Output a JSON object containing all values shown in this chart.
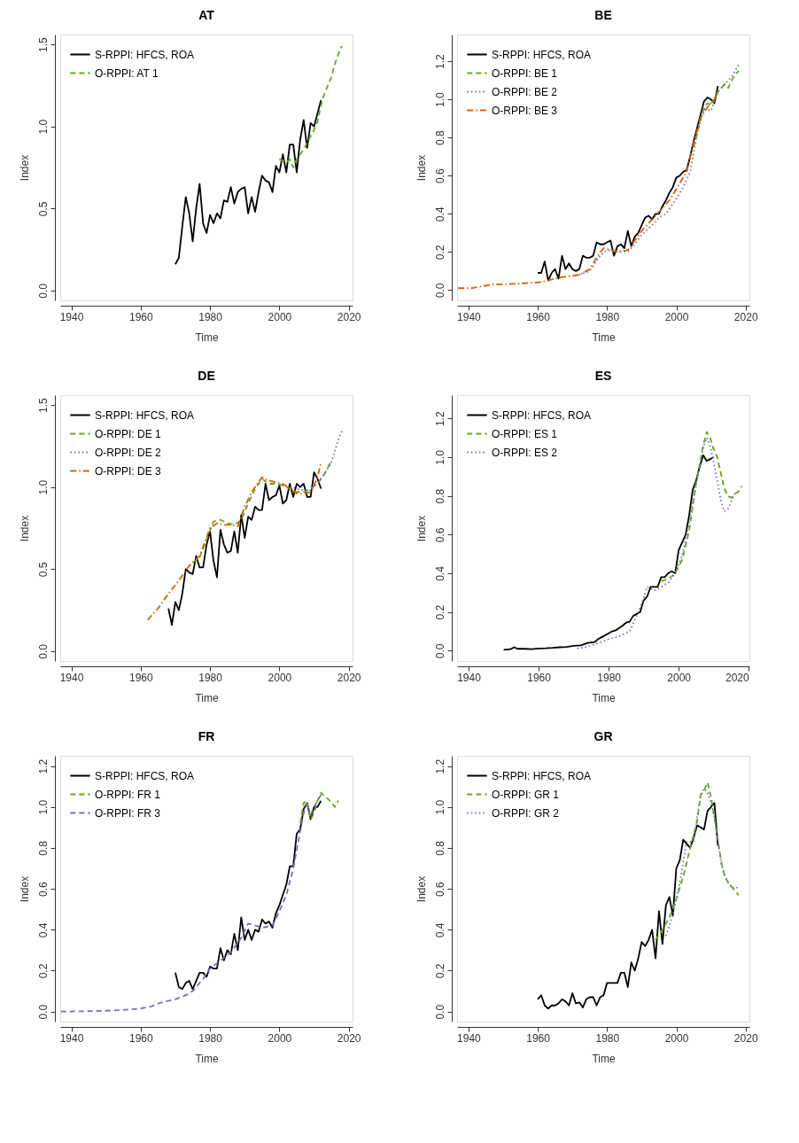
{
  "chart_data": [
    {
      "type": "line",
      "title": "AT",
      "xlabel": "Time",
      "ylabel": "Index",
      "legend": "top left",
      "xlim": [
        1936.8,
        2021.1
      ],
      "xticks": [
        1940,
        1960,
        1980,
        2000,
        2020
      ],
      "ylim": [
        -0.06,
        1.56
      ],
      "yticks": [
        {
          "value": 0,
          "label": "0.0"
        },
        {
          "value": 0.5,
          "label": "0.5"
        },
        {
          "value": 1,
          "label": "1.0"
        },
        {
          "value": 1.5,
          "label": "1.5"
        }
      ],
      "series": [
        {
          "name": "S-RPPI: HFCS, ROA",
          "color": "#000000",
          "line_style": "solid",
          "x": [
            1970,
            1971,
            1972,
            1973,
            1974,
            1975,
            1976,
            1977,
            1978,
            1979,
            1980,
            1981,
            1982,
            1983,
            1984,
            1985,
            1986,
            1987,
            1988,
            1989,
            1990,
            1991,
            1992,
            1993,
            1994,
            1995,
            1996,
            1997,
            1998,
            1999,
            2000,
            2001,
            2002,
            2003,
            2004,
            2005,
            2006,
            2007,
            2008,
            2009,
            2010,
            2011,
            2012
          ],
          "values": [
            0.16,
            0.2,
            0.39,
            0.57,
            0.47,
            0.3,
            0.5,
            0.65,
            0.41,
            0.35,
            0.46,
            0.41,
            0.47,
            0.44,
            0.55,
            0.54,
            0.63,
            0.53,
            0.6,
            0.62,
            0.63,
            0.47,
            0.57,
            0.48,
            0.6,
            0.7,
            0.67,
            0.66,
            0.6,
            0.76,
            0.72,
            0.83,
            0.72,
            0.89,
            0.89,
            0.72,
            0.92,
            1.04,
            0.87,
            1.02,
            1.0,
            1.08,
            1.16
          ]
        },
        {
          "name": "O-RPPI: AT 1",
          "color": "#66a61e",
          "line_style": "dashed",
          "x": [
            2000,
            2001,
            2002,
            2003,
            2004,
            2005,
            2006,
            2007,
            2008,
            2009,
            2010,
            2011,
            2012,
            2013,
            2014,
            2015,
            2016,
            2017,
            2018
          ],
          "values": [
            0.8,
            0.79,
            0.78,
            0.8,
            0.75,
            0.8,
            0.83,
            0.86,
            0.9,
            0.94,
            0.98,
            1.03,
            1.13,
            1.2,
            1.25,
            1.3,
            1.38,
            1.44,
            1.49
          ]
        }
      ]
    },
    {
      "type": "line",
      "title": "BE",
      "xlabel": "Time",
      "ylabel": "Index",
      "legend": "top left",
      "xlim": [
        1936.7,
        2021.1
      ],
      "xticks": [
        1940,
        1960,
        1980,
        2000,
        2020
      ],
      "ylim": [
        -0.054,
        1.34
      ],
      "yticks": [
        {
          "value": 0,
          "label": "0.0"
        },
        {
          "value": 0.2,
          "label": "0.2"
        },
        {
          "value": 0.4,
          "label": "0.4"
        },
        {
          "value": 0.6,
          "label": "0.6"
        },
        {
          "value": 0.8,
          "label": "0.8"
        },
        {
          "value": 1,
          "label": "1.0"
        },
        {
          "value": 1.2,
          "label": "1.2"
        }
      ],
      "series": [
        {
          "name": "S-RPPI: HFCS, ROA",
          "color": "#000000",
          "line_style": "solid",
          "x": [
            1960,
            1961,
            1962,
            1963,
            1964,
            1965,
            1966,
            1967,
            1968,
            1969,
            1970,
            1971,
            1972,
            1973,
            1974,
            1975,
            1976,
            1977,
            1978,
            1979,
            1980,
            1981,
            1982,
            1983,
            1984,
            1985,
            1986,
            1987,
            1988,
            1989,
            1990,
            1991,
            1992,
            1993,
            1994,
            1995,
            1996,
            1997,
            1998,
            1999,
            2000,
            2001,
            2002,
            2003,
            2004,
            2005,
            2006,
            2007,
            2008,
            2009,
            2010,
            2011,
            2012
          ],
          "values": [
            0.09,
            0.09,
            0.15,
            0.05,
            0.09,
            0.11,
            0.06,
            0.18,
            0.11,
            0.14,
            0.11,
            0.1,
            0.11,
            0.18,
            0.17,
            0.17,
            0.18,
            0.25,
            0.24,
            0.24,
            0.25,
            0.26,
            0.18,
            0.23,
            0.24,
            0.22,
            0.31,
            0.23,
            0.28,
            0.3,
            0.34,
            0.38,
            0.39,
            0.37,
            0.4,
            0.4,
            0.44,
            0.47,
            0.51,
            0.54,
            0.59,
            0.6,
            0.62,
            0.63,
            0.7,
            0.78,
            0.85,
            0.92,
            0.99,
            1.01,
            1.0,
            0.98,
            1.07
          ]
        },
        {
          "name": "O-RPPI: BE 1",
          "color": "#66a61e",
          "line_style": "dashed",
          "x": [
            2005,
            2006,
            2007,
            2008,
            2009,
            2010,
            2011,
            2012,
            2013,
            2014,
            2015,
            2016,
            2017,
            2018
          ],
          "values": [
            0.75,
            0.82,
            0.9,
            0.96,
            0.98,
            0.97,
            1.0,
            1.04,
            1.06,
            1.08,
            1.06,
            1.1,
            1.13,
            1.15
          ]
        },
        {
          "name": "O-RPPI: BE 2",
          "color": "#7570b3",
          "line_style": "dotted",
          "x": [
            1972,
            1975,
            1978,
            1980,
            1983,
            1986,
            1988,
            1990,
            1993,
            1995,
            1997,
            2000,
            2002,
            2004,
            2006,
            2008,
            2010,
            2012,
            2014,
            2016,
            2018
          ],
          "values": [
            0.08,
            0.1,
            0.18,
            0.21,
            0.2,
            0.2,
            0.24,
            0.29,
            0.34,
            0.38,
            0.4,
            0.48,
            0.54,
            0.62,
            0.82,
            0.95,
            0.94,
            1.04,
            1.08,
            1.12,
            1.18
          ]
        },
        {
          "name": "O-RPPI: BE 3",
          "color": "#d95f02",
          "line_style": "dashdot",
          "x": [
            1937,
            1941,
            1944,
            1947,
            1950,
            1955,
            1960,
            1963,
            1966,
            1970,
            1972,
            1975,
            1977,
            1979,
            1981,
            1983,
            1986,
            1988,
            1990,
            1993,
            1995,
            1998,
            2000,
            2003,
            2005,
            2007,
            2009,
            2011,
            2012
          ],
          "values": [
            0.01,
            0.01,
            0.02,
            0.03,
            0.03,
            0.035,
            0.04,
            0.05,
            0.065,
            0.075,
            0.08,
            0.11,
            0.17,
            0.22,
            0.21,
            0.2,
            0.21,
            0.26,
            0.31,
            0.37,
            0.41,
            0.47,
            0.53,
            0.62,
            0.77,
            0.9,
            0.96,
            1.0,
            1.05
          ]
        }
      ]
    },
    {
      "type": "line",
      "title": "DE",
      "xlabel": "Time",
      "ylabel": "Index",
      "legend": "top left",
      "xlim": [
        1936.8,
        2021.1
      ],
      "xticks": [
        1940,
        1960,
        1980,
        2000,
        2020
      ],
      "ylim": [
        -0.06,
        1.56
      ],
      "yticks": [
        {
          "value": 0,
          "label": "0.0"
        },
        {
          "value": 0.5,
          "label": "0.5"
        },
        {
          "value": 1,
          "label": "1.0"
        },
        {
          "value": 1.5,
          "label": "1.5"
        }
      ],
      "series": [
        {
          "name": "S-RPPI: HFCS, ROA",
          "color": "#000000",
          "line_style": "solid",
          "x": [
            1968,
            1969,
            1970,
            1971,
            1972,
            1973,
            1974,
            1975,
            1976,
            1977,
            1978,
            1979,
            1980,
            1981,
            1982,
            1983,
            1984,
            1985,
            1986,
            1987,
            1988,
            1989,
            1990,
            1991,
            1992,
            1993,
            1994,
            1995,
            1996,
            1997,
            1998,
            1999,
            2000,
            2001,
            2002,
            2003,
            2004,
            2005,
            2006,
            2007,
            2008,
            2009,
            2010,
            2011,
            2012
          ],
          "values": [
            0.26,
            0.16,
            0.3,
            0.25,
            0.35,
            0.5,
            0.48,
            0.47,
            0.58,
            0.51,
            0.51,
            0.65,
            0.73,
            0.55,
            0.45,
            0.74,
            0.65,
            0.6,
            0.61,
            0.73,
            0.6,
            0.83,
            0.69,
            0.82,
            0.8,
            0.88,
            0.86,
            0.86,
            1.02,
            0.92,
            0.94,
            0.95,
            1.01,
            0.9,
            0.92,
            1.02,
            0.94,
            1.02,
            1.0,
            1.02,
            0.94,
            0.94,
            1.09,
            1.05,
            0.99
          ]
        },
        {
          "name": "O-RPPI: DE 1",
          "color": "#66a61e",
          "line_style": "dashed",
          "x": [
            1975,
            1977,
            1979,
            1981,
            1983,
            1985,
            1987,
            1989,
            1991,
            1993,
            1995,
            1997,
            1999,
            2001,
            2003,
            2005,
            2007,
            2009,
            2011,
            2013,
            2015
          ],
          "values": [
            0.54,
            0.57,
            0.68,
            0.79,
            0.8,
            0.78,
            0.77,
            0.8,
            0.9,
            0.99,
            1.05,
            1.02,
            1.02,
            1.01,
            0.99,
            0.97,
            0.97,
            0.99,
            1.02,
            1.08,
            1.16
          ]
        },
        {
          "name": "O-RPPI: DE 2",
          "color": "#7570b3",
          "line_style": "dotted",
          "x": [
            2003,
            2005,
            2007,
            2009,
            2011,
            2013,
            2015,
            2016,
            2017,
            2018
          ],
          "values": [
            1.0,
            0.99,
            0.98,
            0.98,
            1.03,
            1.08,
            1.15,
            1.22,
            1.29,
            1.34
          ]
        },
        {
          "name": "O-RPPI: DE 3",
          "color": "#d95f02",
          "line_style": "dashdot",
          "x": [
            1962,
            1965,
            1968,
            1971,
            1974,
            1977,
            1980,
            1982,
            1984,
            1986,
            1988,
            1990,
            1992,
            1995,
            1997,
            1999,
            2001,
            2003,
            2005,
            2007,
            2009,
            2011,
            2012
          ],
          "values": [
            0.19,
            0.26,
            0.35,
            0.43,
            0.52,
            0.58,
            0.75,
            0.78,
            0.77,
            0.77,
            0.76,
            0.88,
            0.97,
            1.06,
            1.04,
            1.03,
            1.02,
            0.99,
            0.96,
            0.96,
            0.97,
            1.06,
            1.15
          ]
        }
      ]
    },
    {
      "type": "line",
      "title": "ES",
      "xlabel": "Time",
      "ylabel": "Index",
      "legend": "top left",
      "xlim": [
        1936.7,
        2020.2
      ],
      "xticks": [
        1940,
        1960,
        1980,
        2000,
        2020
      ],
      "ylim": [
        -0.053,
        1.32
      ],
      "yticks": [
        {
          "value": 0,
          "label": "0.0"
        },
        {
          "value": 0.2,
          "label": "0.2"
        },
        {
          "value": 0.4,
          "label": "0.4"
        },
        {
          "value": 0.6,
          "label": "0.6"
        },
        {
          "value": 0.8,
          "label": "0.8"
        },
        {
          "value": 1,
          "label": "1.0"
        },
        {
          "value": 1.2,
          "label": "1.2"
        }
      ],
      "series": [
        {
          "name": "S-RPPI: HFCS, ROA",
          "color": "#000000",
          "line_style": "solid",
          "x": [
            1950,
            1952,
            1953,
            1954,
            1956,
            1958,
            1960,
            1962,
            1964,
            1966,
            1968,
            1970,
            1972,
            1974,
            1976,
            1977,
            1978,
            1980,
            1981,
            1982,
            1984,
            1985,
            1986,
            1987,
            1988,
            1989,
            1990,
            1991,
            1992,
            1993,
            1994,
            1995,
            1996,
            1997,
            1998,
            1999,
            2000,
            2001,
            2002,
            2003,
            2004,
            2005,
            2006,
            2007,
            2008,
            2009,
            2010
          ],
          "values": [
            0.005,
            0.008,
            0.018,
            0.01,
            0.01,
            0.008,
            0.012,
            0.013,
            0.015,
            0.018,
            0.02,
            0.025,
            0.028,
            0.04,
            0.045,
            0.06,
            0.07,
            0.09,
            0.1,
            0.105,
            0.13,
            0.145,
            0.15,
            0.18,
            0.19,
            0.2,
            0.26,
            0.28,
            0.33,
            0.33,
            0.33,
            0.38,
            0.38,
            0.4,
            0.41,
            0.4,
            0.52,
            0.56,
            0.6,
            0.7,
            0.83,
            0.88,
            0.95,
            1.01,
            0.98,
            0.99,
            1.0
          ]
        },
        {
          "name": "O-RPPI: ES 1",
          "color": "#66a61e",
          "line_style": "dashed",
          "x": [
            1995,
            1997,
            1999,
            2001,
            2003,
            2005,
            2006,
            2007,
            2008,
            2009,
            2010,
            2011,
            2012,
            2013,
            2014,
            2015,
            2016,
            2017,
            2018
          ],
          "values": [
            0.36,
            0.37,
            0.4,
            0.47,
            0.62,
            0.87,
            0.96,
            1.06,
            1.13,
            1.1,
            1.04,
            1.0,
            0.92,
            0.84,
            0.8,
            0.79,
            0.81,
            0.82,
            0.85
          ]
        },
        {
          "name": "O-RPPI: ES 2",
          "color": "#7570b3",
          "line_style": "dotted",
          "x": [
            1971,
            1974,
            1977,
            1980,
            1983,
            1986,
            1988,
            1990,
            1991,
            1993,
            1995,
            1997,
            1999,
            2001,
            2003,
            2005,
            2007,
            2008,
            2009,
            2010,
            2011,
            2012,
            2013,
            2014,
            2015,
            2016
          ],
          "values": [
            0.012,
            0.02,
            0.04,
            0.06,
            0.075,
            0.1,
            0.18,
            0.27,
            0.33,
            0.31,
            0.33,
            0.35,
            0.4,
            0.49,
            0.66,
            0.86,
            1.05,
            1.1,
            1.06,
            0.97,
            0.88,
            0.78,
            0.72,
            0.73,
            0.77,
            0.81
          ]
        }
      ]
    },
    {
      "type": "line",
      "title": "FR",
      "xlabel": "Time",
      "ylabel": "Index",
      "legend": "top left",
      "xlim": [
        1936.8,
        2021.1
      ],
      "xticks": [
        1940,
        1960,
        1980,
        2000,
        2020
      ],
      "ylim": [
        -0.049,
        1.25
      ],
      "yticks": [
        {
          "value": 0,
          "label": "0.0"
        },
        {
          "value": 0.2,
          "label": "0.2"
        },
        {
          "value": 0.4,
          "label": "0.4"
        },
        {
          "value": 0.6,
          "label": "0.6"
        },
        {
          "value": 0.8,
          "label": "0.8"
        },
        {
          "value": 1,
          "label": "1.0"
        },
        {
          "value": 1.2,
          "label": "1.2"
        }
      ],
      "series": [
        {
          "name": "S-RPPI: HFCS, ROA",
          "color": "#000000",
          "line_style": "solid",
          "x": [
            1970,
            1971,
            1972,
            1973,
            1974,
            1975,
            1976,
            1977,
            1978,
            1979,
            1980,
            1981,
            1982,
            1983,
            1984,
            1985,
            1986,
            1987,
            1988,
            1989,
            1990,
            1991,
            1992,
            1993,
            1994,
            1995,
            1996,
            1997,
            1998,
            1999,
            2000,
            2001,
            2002,
            2003,
            2004,
            2005,
            2006,
            2007,
            2008,
            2009,
            2010,
            2011,
            2012
          ],
          "values": [
            0.19,
            0.12,
            0.11,
            0.14,
            0.15,
            0.11,
            0.15,
            0.19,
            0.19,
            0.17,
            0.22,
            0.21,
            0.21,
            0.31,
            0.25,
            0.3,
            0.28,
            0.38,
            0.3,
            0.46,
            0.35,
            0.4,
            0.35,
            0.4,
            0.39,
            0.45,
            0.43,
            0.44,
            0.41,
            0.48,
            0.52,
            0.57,
            0.62,
            0.71,
            0.71,
            0.87,
            0.89,
            0.99,
            1.02,
            0.94,
            1.0,
            1.0,
            1.03
          ]
        },
        {
          "name": "O-RPPI: FR 1",
          "color": "#66a61e",
          "line_style": "dashed",
          "x": [
            2006,
            2007,
            2008,
            2009,
            2010,
            2011,
            2012,
            2013,
            2014,
            2015,
            2016,
            2017
          ],
          "values": [
            0.92,
            1.02,
            1.03,
            0.94,
            0.97,
            1.03,
            1.07,
            1.05,
            1.04,
            1.02,
            1.0,
            1.03
          ]
        },
        {
          "name": "O-RPPI: FR 3",
          "color": "#7570b3",
          "line_style": "dashed",
          "x": [
            1937,
            1945,
            1950,
            1955,
            1960,
            1963,
            1966,
            1970,
            1973,
            1975,
            1978,
            1980,
            1983,
            1986,
            1989,
            1991,
            1993,
            1995,
            1998,
            2000,
            2002,
            2004,
            2006,
            2007,
            2008,
            2009,
            2010,
            2012
          ],
          "values": [
            0.0,
            0.002,
            0.004,
            0.008,
            0.015,
            0.025,
            0.045,
            0.06,
            0.08,
            0.1,
            0.16,
            0.21,
            0.25,
            0.29,
            0.36,
            0.43,
            0.42,
            0.41,
            0.42,
            0.49,
            0.57,
            0.7,
            0.88,
            0.97,
            1.02,
            0.96,
            1.0,
            1.06
          ]
        }
      ]
    },
    {
      "type": "line",
      "title": "GR",
      "xlabel": "Time",
      "ylabel": "Index",
      "legend": "top left",
      "xlim": [
        1936.7,
        2021.1
      ],
      "xticks": [
        1940,
        1960,
        1980,
        2000,
        2020
      ],
      "ylim": [
        -0.049,
        1.25
      ],
      "yticks": [
        {
          "value": 0,
          "label": "0.0"
        },
        {
          "value": 0.2,
          "label": "0.2"
        },
        {
          "value": 0.4,
          "label": "0.4"
        },
        {
          "value": 0.6,
          "label": "0.6"
        },
        {
          "value": 0.8,
          "label": "0.8"
        },
        {
          "value": 1,
          "label": "1.0"
        },
        {
          "value": 1.2,
          "label": "1.2"
        }
      ],
      "series": [
        {
          "name": "S-RPPI: HFCS, ROA",
          "color": "#000000",
          "line_style": "solid",
          "x": [
            1960,
            1961,
            1962,
            1963,
            1964,
            1965,
            1966,
            1967,
            1968,
            1969,
            1970,
            1971,
            1972,
            1973,
            1974,
            1975,
            1976,
            1977,
            1978,
            1979,
            1980,
            1981,
            1982,
            1983,
            1984,
            1985,
            1986,
            1987,
            1988,
            1989,
            1990,
            1991,
            1992,
            1993,
            1994,
            1995,
            1996,
            1997,
            1998,
            1999,
            2000,
            2001,
            2002,
            2003,
            2004,
            2005,
            2006,
            2007,
            2008,
            2009,
            2010,
            2011,
            2012
          ],
          "values": [
            0.06,
            0.08,
            0.03,
            0.015,
            0.03,
            0.03,
            0.04,
            0.06,
            0.05,
            0.03,
            0.09,
            0.04,
            0.045,
            0.02,
            0.06,
            0.07,
            0.07,
            0.03,
            0.07,
            0.08,
            0.14,
            0.14,
            0.14,
            0.14,
            0.19,
            0.19,
            0.12,
            0.24,
            0.2,
            0.26,
            0.34,
            0.32,
            0.35,
            0.4,
            0.26,
            0.49,
            0.33,
            0.52,
            0.56,
            0.47,
            0.7,
            0.74,
            0.84,
            0.82,
            0.8,
            0.85,
            0.91,
            0.9,
            0.89,
            0.98,
            1.0,
            1.02,
            0.81
          ]
        },
        {
          "name": "O-RPPI: GR 1",
          "color": "#66a61e",
          "line_style": "dashed",
          "x": [
            1994,
            1996,
            1998,
            2000,
            2002,
            2004,
            2006,
            2007,
            2008,
            2009,
            2010,
            2011,
            2012,
            2013,
            2014,
            2015,
            2016,
            2017,
            2018
          ],
          "values": [
            0.35,
            0.4,
            0.46,
            0.55,
            0.66,
            0.8,
            0.93,
            1.06,
            1.08,
            1.12,
            1.05,
            0.95,
            0.84,
            0.73,
            0.66,
            0.63,
            0.61,
            0.59,
            0.57
          ]
        },
        {
          "name": "O-RPPI: GR 2",
          "color": "#7570b3",
          "line_style": "dotted",
          "x": [
            1997,
            1999,
            2001,
            2003,
            2005,
            2006,
            2007,
            2008,
            2009,
            2010,
            2011,
            2012,
            2013,
            2014,
            2015,
            2016,
            2017,
            2018
          ],
          "values": [
            0.37,
            0.47,
            0.63,
            0.83,
            0.83,
            0.95,
            1.05,
            1.09,
            1.07,
            1.02,
            0.95,
            0.84,
            0.72,
            0.66,
            0.63,
            0.61,
            0.6,
            0.61
          ]
        }
      ]
    }
  ]
}
